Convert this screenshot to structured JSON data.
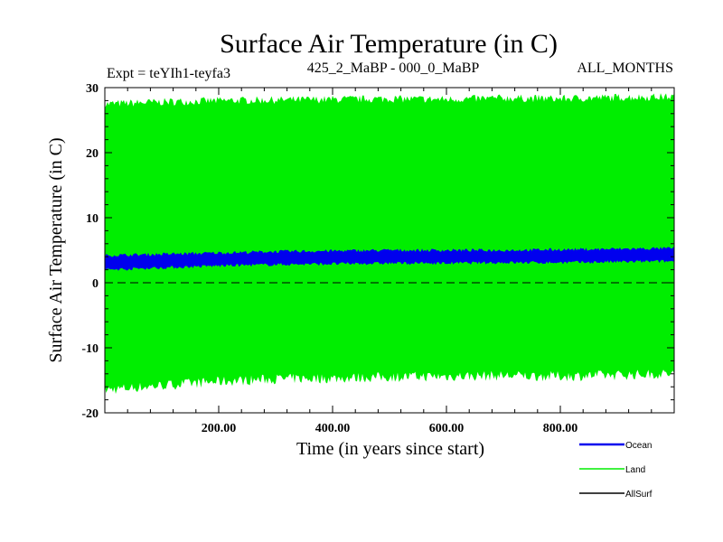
{
  "chart_data": {
    "type": "area",
    "title": "Surface Air Temperature (in C)",
    "subtitle_left": "Expt = teYIh1-teyfa3",
    "subtitle_center": "425_2_MaBP - 000_0_MaBP",
    "subtitle_right": "ALL_MONTHS",
    "xlabel": "Time (in years since start)",
    "ylabel": "Surface Air Temperature (in C)",
    "xlim": [
      0,
      1000
    ],
    "ylim": [
      -20,
      30
    ],
    "xticks": [
      200,
      400,
      600,
      800
    ],
    "xtick_labels": [
      "200.00",
      "400.00",
      "600.00",
      "800.00"
    ],
    "yticks": [
      -20,
      -10,
      0,
      10,
      20,
      30
    ],
    "ytick_labels": [
      "-20",
      "-10",
      "0",
      "10",
      "20",
      "30"
    ],
    "zero_line": 0,
    "series": [
      {
        "name": "Land",
        "color": "#00ee00",
        "x": [
          0,
          100,
          200,
          300,
          400,
          500,
          600,
          700,
          800,
          900,
          1000
        ],
        "min": [
          -16.5,
          -15.8,
          -15.2,
          -14.8,
          -14.7,
          -14.5,
          -14.4,
          -14.3,
          -14.4,
          -14.2,
          -14.0
        ],
        "max": [
          27.5,
          27.8,
          28.0,
          28.1,
          28.2,
          28.3,
          28.2,
          28.4,
          28.3,
          28.5,
          28.6
        ]
      },
      {
        "name": "Ocean",
        "color": "#0000ee",
        "x": [
          0,
          100,
          200,
          300,
          400,
          500,
          600,
          700,
          800,
          900,
          1000
        ],
        "min": [
          2.0,
          2.3,
          2.6,
          2.8,
          2.9,
          3.0,
          3.0,
          3.1,
          3.1,
          3.2,
          3.3
        ],
        "max": [
          4.2,
          4.4,
          4.6,
          4.8,
          4.9,
          5.0,
          5.0,
          5.0,
          5.1,
          5.2,
          5.3
        ]
      },
      {
        "name": "AllSurf",
        "color": "#000000",
        "x": [],
        "min": [],
        "max": []
      }
    ],
    "legend": [
      "Ocean",
      "Land",
      "AllSurf"
    ]
  }
}
